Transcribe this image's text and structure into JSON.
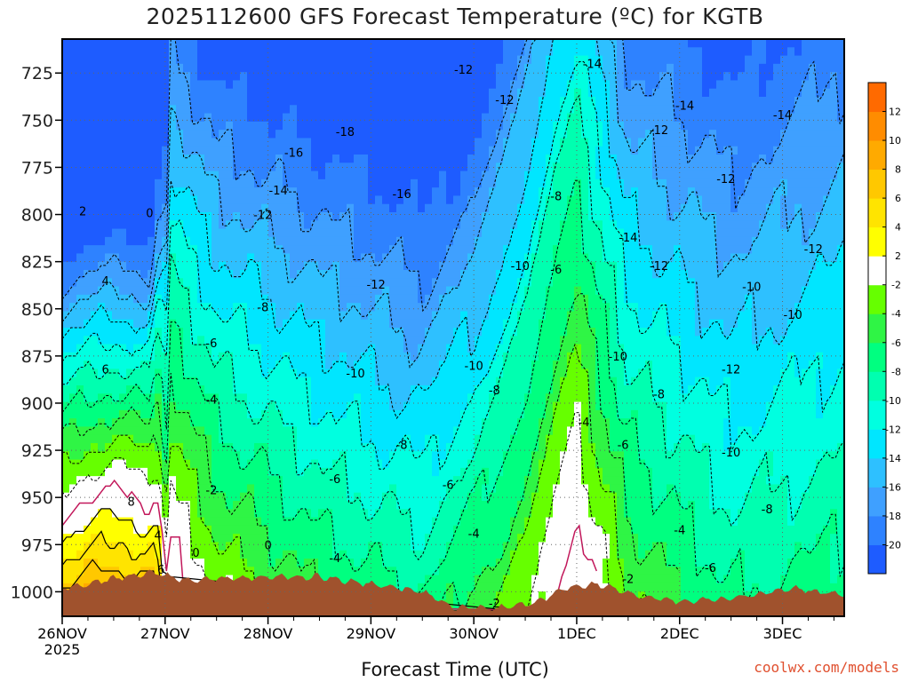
{
  "chart_data": {
    "type": "heatmap",
    "title": "2025112600 GFS Forecast Temperature (ºC) for KGTB",
    "xlabel": "Forecast Time (UTC)",
    "x_ticks": [
      "26NOV",
      "27NOV",
      "28NOV",
      "29NOV",
      "30NOV",
      "1DEC",
      "2DEC",
      "3DEC"
    ],
    "x_year_label": "2025",
    "x_range_days": [
      0,
      7.6
    ],
    "y_ticks": [
      725,
      750,
      775,
      800,
      825,
      850,
      875,
      900,
      925,
      950,
      975,
      1000
    ],
    "y_range_hpa": [
      707,
      1013
    ],
    "grid": true,
    "colorbar": {
      "placement": "right",
      "levels": [
        -22,
        -20,
        -18,
        -16,
        -14,
        -12,
        -10,
        -8,
        -6,
        -4,
        -2,
        2,
        4,
        6,
        8,
        10,
        12,
        14
      ],
      "labels": [
        "-20",
        "-18",
        "-16",
        "-14",
        "-12",
        "-10",
        "-8",
        "-6",
        "-4",
        "-2",
        "2",
        "4",
        "6",
        "8",
        "10",
        "12"
      ],
      "colors": [
        "#1e5cff",
        "#2e82ff",
        "#3fa0ff",
        "#2ec0ff",
        "#00e6ff",
        "#00ffe0",
        "#00ffb0",
        "#00ff80",
        "#2ff545",
        "#66ff00",
        "#ffffff",
        "#ffff00",
        "#ffe400",
        "#ffc800",
        "#ffaa00",
        "#ff8c00",
        "#ff6a00"
      ]
    },
    "contour_labels": [
      {
        "t": 0.2,
        "p": 798,
        "text": "2"
      },
      {
        "t": 0.85,
        "p": 799,
        "text": "0"
      },
      {
        "t": 0.42,
        "p": 835,
        "text": "4"
      },
      {
        "t": 0.42,
        "p": 882,
        "text": "6"
      },
      {
        "t": 0.67,
        "p": 952,
        "text": "8"
      },
      {
        "t": 0.93,
        "p": 970,
        "text": "4"
      },
      {
        "t": 0.96,
        "p": 988,
        "text": "6"
      },
      {
        "t": 1.3,
        "p": 979,
        "text": "0"
      },
      {
        "t": 2.0,
        "p": 975,
        "text": "0"
      },
      {
        "t": 1.45,
        "p": 946,
        "text": "-2"
      },
      {
        "t": 1.45,
        "p": 898,
        "text": "-4"
      },
      {
        "t": 1.45,
        "p": 868,
        "text": "-6"
      },
      {
        "t": 1.95,
        "p": 849,
        "text": "-8"
      },
      {
        "t": 1.95,
        "p": 800,
        "text": "-12"
      },
      {
        "t": 2.1,
        "p": 787,
        "text": "-14"
      },
      {
        "t": 2.25,
        "p": 767,
        "text": "-16"
      },
      {
        "t": 2.75,
        "p": 756,
        "text": "-18"
      },
      {
        "t": 3.3,
        "p": 789,
        "text": "-16"
      },
      {
        "t": 3.05,
        "p": 837,
        "text": "-12"
      },
      {
        "t": 2.85,
        "p": 884,
        "text": "-10"
      },
      {
        "t": 3.3,
        "p": 922,
        "text": "-8"
      },
      {
        "t": 2.65,
        "p": 940,
        "text": "-6"
      },
      {
        "t": 2.65,
        "p": 982,
        "text": "-4"
      },
      {
        "t": 3.9,
        "p": 723,
        "text": "-12"
      },
      {
        "t": 4.3,
        "p": 739,
        "text": "-12"
      },
      {
        "t": 4.0,
        "p": 880,
        "text": "-10"
      },
      {
        "t": 3.75,
        "p": 943,
        "text": "-6"
      },
      {
        "t": 4.0,
        "p": 969,
        "text": "-4"
      },
      {
        "t": 4.2,
        "p": 893,
        "text": "-8"
      },
      {
        "t": 4.45,
        "p": 827,
        "text": "-10"
      },
      {
        "t": 4.8,
        "p": 790,
        "text": "-8"
      },
      {
        "t": 4.8,
        "p": 829,
        "text": "-6"
      },
      {
        "t": 5.07,
        "p": 910,
        "text": "-4"
      },
      {
        "t": 5.15,
        "p": 720,
        "text": "-14"
      },
      {
        "t": 5.45,
        "p": 922,
        "text": "-6"
      },
      {
        "t": 5.4,
        "p": 875,
        "text": "-10"
      },
      {
        "t": 5.5,
        "p": 812,
        "text": "-14"
      },
      {
        "t": 5.8,
        "p": 755,
        "text": "-12"
      },
      {
        "t": 5.8,
        "p": 827,
        "text": "-12"
      },
      {
        "t": 5.8,
        "p": 895,
        "text": "-8"
      },
      {
        "t": 5.5,
        "p": 993,
        "text": "-2"
      },
      {
        "t": 6.0,
        "p": 967,
        "text": "-4"
      },
      {
        "t": 6.05,
        "p": 742,
        "text": "-14"
      },
      {
        "t": 6.3,
        "p": 987,
        "text": "-6"
      },
      {
        "t": 6.45,
        "p": 781,
        "text": "-12"
      },
      {
        "t": 6.5,
        "p": 882,
        "text": "-12"
      },
      {
        "t": 6.5,
        "p": 926,
        "text": "-10"
      },
      {
        "t": 6.7,
        "p": 838,
        "text": "-10"
      },
      {
        "t": 6.85,
        "p": 956,
        "text": "-8"
      },
      {
        "t": 7.0,
        "p": 747,
        "text": "-14"
      },
      {
        "t": 7.1,
        "p": 853,
        "text": "-10"
      },
      {
        "t": 7.3,
        "p": 818,
        "text": "-12"
      },
      {
        "t": 4.2,
        "p": 1006,
        "text": "-2"
      }
    ]
  },
  "watermark": "coolwx.com/models"
}
